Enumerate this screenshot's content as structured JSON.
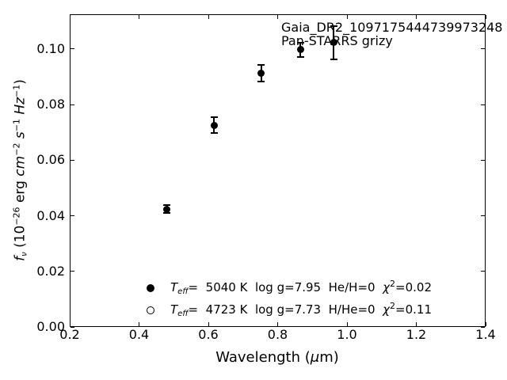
{
  "figure": {
    "background": "#ffffff",
    "foreground": "#000000",
    "annotation": {
      "line1": "Gaia_DR2_1097175444739973248",
      "line2": "Pan-STARRS grizy"
    },
    "xlabel": {
      "pre": "Wavelength (",
      "mu": "μ",
      "post": "m)"
    },
    "ylabel": {
      "f": "f",
      "nu": "ν",
      "open": " (10",
      "open_sup": "−26",
      "erg": " erg ",
      "cm": "cm",
      "cm_sup": "−2",
      "s": " s",
      "s_sup": "−1",
      "hz": " Hz",
      "hz_sup": "−1",
      "close": ")"
    },
    "x_tick_labels": [
      "0.2",
      "0.4",
      "0.6",
      "0.8",
      "1.0",
      "1.2",
      "1.4"
    ],
    "y_tick_labels": [
      "0.00",
      "0.02",
      "0.04",
      "0.06",
      "0.08",
      "0.10"
    ],
    "legend": {
      "rows": [
        {
          "marker": "filled-circle",
          "t": "T",
          "sub": "eff",
          "body": "=  5040 K  log g=7.95  He/H=0  ",
          "chi": "χ",
          "sup": "2",
          "tail": "=0.02"
        },
        {
          "marker": "open-circle",
          "t": "T",
          "sub": "eff",
          "body": "=  4723 K  log g=7.73  H/He=0  ",
          "chi": "χ",
          "sup": "2",
          "tail": "=0.11"
        }
      ]
    }
  },
  "chart_data": {
    "type": "scatter",
    "title": "",
    "xlabel": "Wavelength (μm)",
    "ylabel": "f_ν (10^−26 erg cm^−2 s^−1 Hz^−1)",
    "xlim": [
      0.2,
      1.4
    ],
    "ylim": [
      0.0,
      0.1125
    ],
    "x_ticks": [
      0.2,
      0.4,
      0.6,
      0.8,
      1.0,
      1.2,
      1.4
    ],
    "y_ticks": [
      0.0,
      0.02,
      0.04,
      0.06,
      0.08,
      0.1
    ],
    "grid": false,
    "tick_style": "inward ticks on all four spines",
    "legend_position": "lower left inside axes, frameless",
    "annotations": [
      {
        "text": "Gaia_DR2_1097175444739973248",
        "x": 0.81,
        "y": 0.107
      },
      {
        "text": "Pan-STARRS grizy",
        "x": 0.81,
        "y": 0.102
      }
    ],
    "series": [
      {
        "name": "Teff= 5040 K  log g=7.95  He/H=0  chi^2=0.02",
        "marker": "filled-circle",
        "color": "#000000",
        "x": [
          0.481,
          0.617,
          0.752,
          0.866,
          0.962
        ],
        "y": [
          0.0424,
          0.0726,
          0.0912,
          0.0997,
          0.1023
        ],
        "yerr": [
          0.0015,
          0.0028,
          0.003,
          0.0026,
          0.006
        ]
      },
      {
        "name": "Teff= 4723 K  log g=7.73  H/He=0  chi^2=0.11",
        "marker": "open-circle",
        "color": "#000000",
        "x": [],
        "y": [],
        "yerr": []
      }
    ]
  }
}
